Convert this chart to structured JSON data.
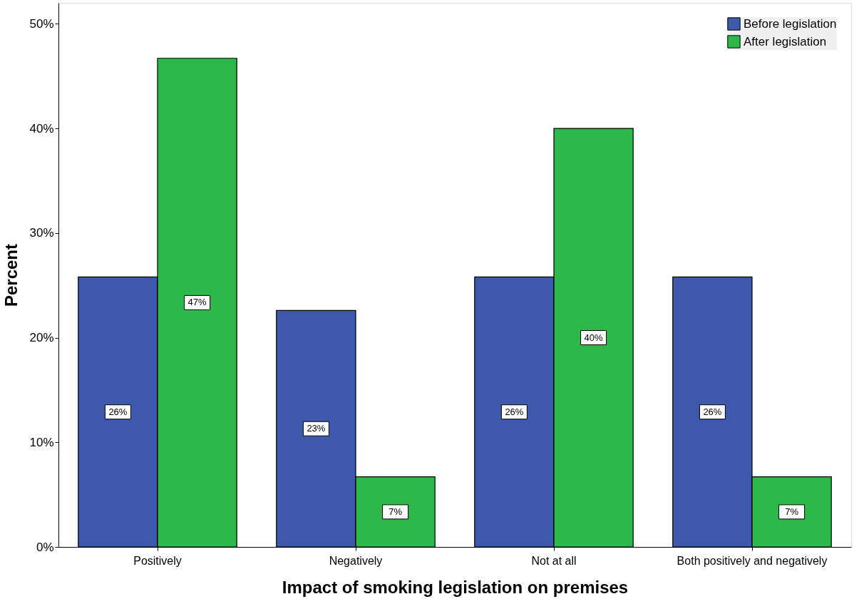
{
  "chart_data": {
    "type": "bar",
    "xlabel": "Impact of smoking legislation on premises",
    "ylabel": "Percent",
    "categories": [
      "Positively",
      "Negatively",
      "Not at all",
      "Both positively and negatively"
    ],
    "series": [
      {
        "name": "Before legislation",
        "color": "#3e58ac",
        "values": [
          25.8,
          22.6,
          25.8,
          25.8
        ],
        "value_labels": [
          "26%",
          "23%",
          "26%",
          "26%"
        ]
      },
      {
        "name": "After legislation",
        "color": "#2db84a",
        "values": [
          46.7,
          6.7,
          40.0,
          6.7
        ],
        "value_labels": [
          "47%",
          "7%",
          "40%",
          "7%"
        ]
      }
    ],
    "ylim": [
      0,
      52
    ],
    "yticks": [
      {
        "value": 0,
        "label": "0%"
      },
      {
        "value": 10,
        "label": "10%"
      },
      {
        "value": 20,
        "label": "20%"
      },
      {
        "value": 30,
        "label": "30%"
      },
      {
        "value": 40,
        "label": "40%"
      },
      {
        "value": 50,
        "label": "50%"
      }
    ],
    "legend": "top right"
  }
}
